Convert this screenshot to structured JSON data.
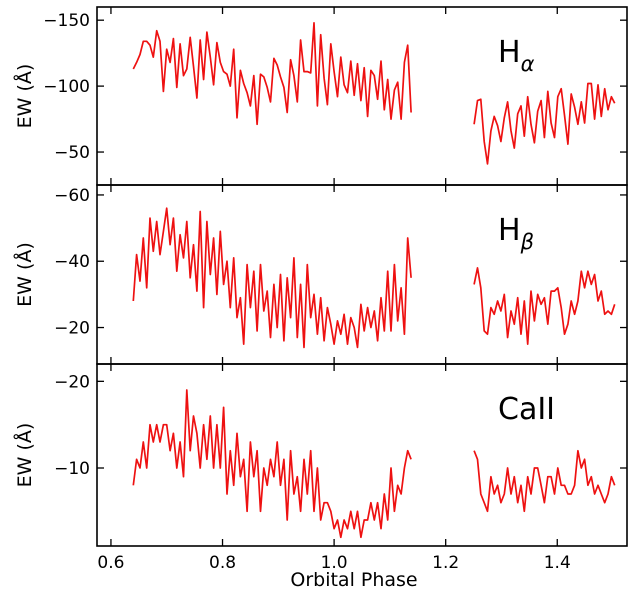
{
  "chart_data": {
    "type": "line",
    "xlabel": "Orbital Phase",
    "xlim": [
      0.575,
      1.525
    ],
    "xticks": [
      0.6,
      0.8,
      1.0,
      1.2,
      1.4
    ],
    "xtick_labels": [
      "0.6",
      "0.8",
      "1.0",
      "1.2",
      "1.4"
    ],
    "series_color": "#ee1111",
    "panels": [
      {
        "id": "halpha",
        "ylabel": "EW (Å)",
        "annotation_main": "H",
        "annotation_sub": "α",
        "ylim": [
          -25,
          -160
        ],
        "yticks": [
          -150,
          -100,
          -50
        ],
        "ytick_labels": [
          "−150",
          "−100",
          "−50"
        ],
        "segments": [
          {
            "x": [
              0.64,
              0.646,
              0.652,
              0.658,
              0.664,
              0.67,
              0.676,
              0.682,
              0.688,
              0.694,
              0.7,
              0.706,
              0.712,
              0.718,
              0.724,
              0.73,
              0.736,
              0.742,
              0.748,
              0.754,
              0.76,
              0.766,
              0.772,
              0.778,
              0.784,
              0.79,
              0.796,
              0.802,
              0.808,
              0.814,
              0.82,
              0.826,
              0.832,
              0.838,
              0.844,
              0.85,
              0.856,
              0.862,
              0.868,
              0.874,
              0.88,
              0.886,
              0.892,
              0.898,
              0.904,
              0.91,
              0.916,
              0.922,
              0.928,
              0.934,
              0.94,
              0.946,
              0.952,
              0.958,
              0.964,
              0.97,
              0.976,
              0.982,
              0.988,
              0.994,
              1.0,
              1.006,
              1.012,
              1.018,
              1.024,
              1.03,
              1.036,
              1.042,
              1.048,
              1.054,
              1.06,
              1.066,
              1.072,
              1.078,
              1.084,
              1.09,
              1.096,
              1.102,
              1.108,
              1.114,
              1.12,
              1.126,
              1.132,
              1.138
            ],
            "y": [
              -113,
              -118,
              -124,
              -134,
              -134,
              -131,
              -122,
              -142,
              -134,
              -96,
              -128,
              -118,
              -136,
              -99,
              -132,
              -108,
              -113,
              -137,
              -115,
              -91,
              -135,
              -105,
              -141,
              -122,
              -101,
              -133,
              -118,
              -111,
              -109,
              -100,
              -128,
              -76,
              -112,
              -102,
              -95,
              -85,
              -108,
              -71,
              -109,
              -107,
              -99,
              -88,
              -121,
              -116,
              -107,
              -99,
              -80,
              -120,
              -108,
              -88,
              -135,
              -111,
              -111,
              -110,
              -148,
              -85,
              -139,
              -106,
              -86,
              -132,
              -111,
              -92,
              -122,
              -101,
              -95,
              -119,
              -93,
              -117,
              -89,
              -114,
              -77,
              -112,
              -108,
              -90,
              -119,
              -82,
              -105,
              -75,
              -97,
              -103,
              -75,
              -118,
              -131,
              -80
            ]
          },
          {
            "x": [
              1.251,
              1.257,
              1.263,
              1.269,
              1.275,
              1.281,
              1.287,
              1.293,
              1.299,
              1.305,
              1.311,
              1.317,
              1.323,
              1.329,
              1.335,
              1.341,
              1.347,
              1.353,
              1.359,
              1.365,
              1.371,
              1.377,
              1.383,
              1.389,
              1.395,
              1.401,
              1.407,
              1.413,
              1.419,
              1.425,
              1.431,
              1.437,
              1.443,
              1.449,
              1.455,
              1.461,
              1.467,
              1.473,
              1.479,
              1.485,
              1.491,
              1.497,
              1.503
            ],
            "y": [
              -71,
              -89,
              -90,
              -58,
              -41,
              -66,
              -77,
              -70,
              -58,
              -76,
              -88,
              -66,
              -53,
              -79,
              -85,
              -62,
              -92,
              -71,
              -57,
              -81,
              -89,
              -61,
              -96,
              -72,
              -61,
              -92,
              -98,
              -78,
              -56,
              -94,
              -84,
              -71,
              -88,
              -72,
              -102,
              -102,
              -75,
              -101,
              -77,
              -98,
              -82,
              -92,
              -87
            ]
          }
        ]
      },
      {
        "id": "hbeta",
        "ylabel": "EW (Å)",
        "annotation_main": "H",
        "annotation_sub": "β",
        "ylim": [
          -9,
          -63
        ],
        "yticks": [
          -60,
          -40,
          -20
        ],
        "ytick_labels": [
          "−60",
          "−40",
          "−20"
        ],
        "segments": [
          {
            "x": [
              0.64,
              0.646,
              0.652,
              0.658,
              0.664,
              0.67,
              0.676,
              0.682,
              0.688,
              0.694,
              0.7,
              0.706,
              0.712,
              0.718,
              0.724,
              0.73,
              0.736,
              0.742,
              0.748,
              0.754,
              0.76,
              0.766,
              0.772,
              0.778,
              0.784,
              0.79,
              0.796,
              0.802,
              0.808,
              0.814,
              0.82,
              0.826,
              0.832,
              0.838,
              0.844,
              0.85,
              0.856,
              0.862,
              0.868,
              0.874,
              0.88,
              0.886,
              0.892,
              0.898,
              0.904,
              0.91,
              0.916,
              0.922,
              0.928,
              0.934,
              0.94,
              0.946,
              0.952,
              0.958,
              0.964,
              0.97,
              0.976,
              0.982,
              0.988,
              0.994,
              1.0,
              1.006,
              1.012,
              1.018,
              1.024,
              1.03,
              1.036,
              1.042,
              1.048,
              1.054,
              1.06,
              1.066,
              1.072,
              1.078,
              1.084,
              1.09,
              1.096,
              1.102,
              1.108,
              1.114,
              1.12,
              1.126,
              1.132,
              1.138
            ],
            "y": [
              -28,
              -42,
              -34,
              -47,
              -32,
              -53,
              -43,
              -52,
              -42,
              -49,
              -56,
              -45,
              -53,
              -37,
              -48,
              -41,
              -52,
              -35,
              -45,
              -31,
              -55,
              -26,
              -52,
              -36,
              -47,
              -30,
              -49,
              -33,
              -40,
              -26,
              -41,
              -23,
              -29,
              -15,
              -39,
              -26,
              -37,
              -19,
              -39,
              -25,
              -31,
              -17,
              -33,
              -20,
              -36,
              -16,
              -35,
              -23,
              -41,
              -17,
              -33,
              -14,
              -39,
              -23,
              -30,
              -18,
              -29,
              -16,
              -26,
              -21,
              -15,
              -22,
              -18,
              -24,
              -15,
              -23,
              -20,
              -14,
              -27,
              -19,
              -26,
              -20,
              -25,
              -16,
              -29,
              -19,
              -37,
              -19,
              -39,
              -22,
              -32,
              -18,
              -47,
              -35
            ]
          },
          {
            "x": [
              1.251,
              1.257,
              1.263,
              1.269,
              1.275,
              1.281,
              1.287,
              1.293,
              1.299,
              1.305,
              1.311,
              1.317,
              1.323,
              1.329,
              1.335,
              1.341,
              1.347,
              1.353,
              1.359,
              1.365,
              1.371,
              1.377,
              1.383,
              1.389,
              1.395,
              1.401,
              1.407,
              1.413,
              1.419,
              1.425,
              1.431,
              1.437,
              1.443,
              1.449,
              1.455,
              1.461,
              1.467,
              1.473,
              1.479,
              1.485,
              1.491,
              1.497,
              1.503
            ],
            "y": [
              -33,
              -38,
              -32,
              -19,
              -18,
              -26,
              -24,
              -28,
              -25,
              -30,
              -17,
              -25,
              -21,
              -29,
              -18,
              -28,
              -15,
              -31,
              -22,
              -30,
              -27,
              -29,
              -21,
              -31,
              -31,
              -32,
              -26,
              -18,
              -21,
              -28,
              -24,
              -28,
              -37,
              -32,
              -37,
              -33,
              -36,
              -28,
              -31,
              -24,
              -25,
              -24,
              -27
            ]
          }
        ]
      },
      {
        "id": "caii",
        "ylabel": "EW (Å)",
        "annotation_main": "CaII",
        "annotation_sub": "",
        "ylim": [
          -1,
          -22
        ],
        "yticks": [
          -20,
          -10
        ],
        "ytick_labels": [
          "−20",
          "−10"
        ],
        "segments": [
          {
            "x": [
              0.64,
              0.646,
              0.652,
              0.658,
              0.664,
              0.67,
              0.676,
              0.682,
              0.688,
              0.694,
              0.7,
              0.706,
              0.712,
              0.718,
              0.724,
              0.73,
              0.736,
              0.742,
              0.748,
              0.754,
              0.76,
              0.766,
              0.772,
              0.778,
              0.784,
              0.79,
              0.796,
              0.802,
              0.808,
              0.814,
              0.82,
              0.826,
              0.832,
              0.838,
              0.844,
              0.85,
              0.856,
              0.862,
              0.868,
              0.874,
              0.88,
              0.886,
              0.892,
              0.898,
              0.904,
              0.91,
              0.916,
              0.922,
              0.928,
              0.934,
              0.94,
              0.946,
              0.952,
              0.958,
              0.964,
              0.97,
              0.976,
              0.982,
              0.988,
              0.994,
              1.0,
              1.006,
              1.012,
              1.018,
              1.024,
              1.03,
              1.036,
              1.042,
              1.048,
              1.054,
              1.06,
              1.066,
              1.072,
              1.078,
              1.084,
              1.09,
              1.096,
              1.102,
              1.108,
              1.114,
              1.12,
              1.126,
              1.132,
              1.138
            ],
            "y": [
              -8,
              -11,
              -10,
              -13,
              -10,
              -15,
              -13,
              -15,
              -13,
              -15,
              -15,
              -12,
              -14,
              -10,
              -13,
              -9,
              -19,
              -12,
              -16,
              -14,
              -10,
              -15,
              -11,
              -16,
              -10,
              -15,
              -10,
              -17,
              -7,
              -12,
              -8,
              -14,
              -9,
              -11,
              -5,
              -13,
              -9,
              -12,
              -5,
              -10,
              -8,
              -11,
              -9,
              -13,
              -8,
              -11,
              -4,
              -12,
              -7,
              -9,
              -5,
              -11,
              -7,
              -12,
              -5,
              -10,
              -4,
              -6,
              -6,
              -5,
              -3,
              -4,
              -2,
              -4,
              -3,
              -5,
              -3,
              -5,
              -2,
              -4,
              -4,
              -6,
              -4,
              -6,
              -3,
              -7,
              -4,
              -10,
              -5,
              -8,
              -7,
              -10,
              -12,
              -11
            ]
          },
          {
            "x": [
              1.251,
              1.257,
              1.263,
              1.269,
              1.275,
              1.281,
              1.287,
              1.293,
              1.299,
              1.305,
              1.311,
              1.317,
              1.323,
              1.329,
              1.335,
              1.341,
              1.347,
              1.353,
              1.359,
              1.365,
              1.371,
              1.377,
              1.383,
              1.389,
              1.395,
              1.401,
              1.407,
              1.413,
              1.419,
              1.425,
              1.431,
              1.437,
              1.443,
              1.449,
              1.455,
              1.461,
              1.467,
              1.473,
              1.479,
              1.485,
              1.491,
              1.497,
              1.503
            ],
            "y": [
              -12,
              -11,
              -7,
              -6,
              -5,
              -9,
              -7,
              -8,
              -6,
              -7,
              -10,
              -7,
              -9,
              -6,
              -8,
              -5,
              -9,
              -7,
              -10,
              -10,
              -8,
              -6,
              -9,
              -9,
              -7,
              -10,
              -8,
              -8,
              -7,
              -7,
              -8,
              -12,
              -10,
              -11,
              -8,
              -9,
              -7,
              -8,
              -7,
              -6,
              -7,
              -9,
              -8
            ]
          }
        ]
      }
    ]
  }
}
